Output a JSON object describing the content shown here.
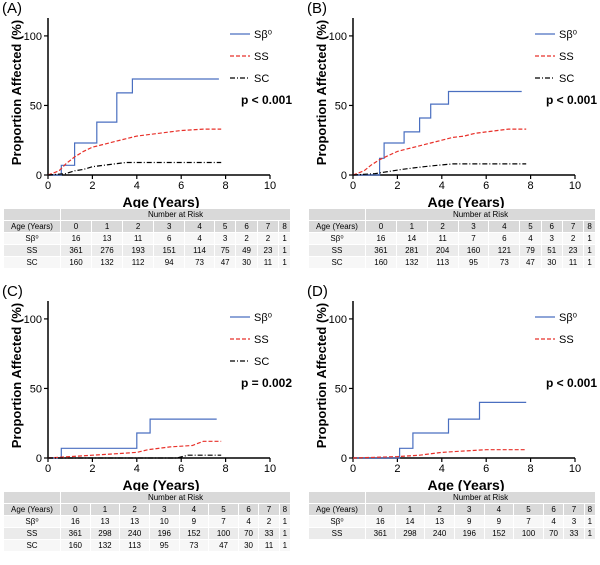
{
  "chart_data": [
    {
      "type": "line",
      "panel_label": "(A)",
      "xlabel": "Age (Years)",
      "ylabel": "Proportion Affected (%)",
      "xlim": [
        0,
        10
      ],
      "ylim": [
        0,
        110
      ],
      "xticks": [
        0,
        2,
        4,
        6,
        8,
        10
      ],
      "yticks": [
        0,
        50,
        100
      ],
      "p_value": "p < 0.001",
      "legend_placement": "top-right",
      "series": [
        {
          "name": "Sβ⁰",
          "color": "#4a6fc0",
          "dash": "solid",
          "x": [
            0,
            0.6,
            0.6,
            1.2,
            1.2,
            2.2,
            2.2,
            3.1,
            3.1,
            3.8,
            3.8,
            7.7
          ],
          "y": [
            0,
            0,
            7,
            7,
            23,
            23,
            38,
            38,
            59,
            59,
            69,
            69
          ]
        },
        {
          "name": "SS",
          "color": "#e8312a",
          "dash": "dash",
          "x": [
            0,
            0.5,
            0.8,
            1.2,
            1.6,
            2.0,
            2.5,
            3.0,
            3.5,
            4.0,
            4.5,
            5.0,
            5.5,
            6.0,
            7.0,
            7.8
          ],
          "y": [
            0,
            3,
            8,
            13,
            17,
            20,
            22,
            24,
            26,
            28,
            29,
            30,
            31,
            32,
            33,
            33
          ]
        },
        {
          "name": "SC",
          "color": "#000000",
          "dash": "dashdot",
          "x": [
            0,
            0.8,
            1.2,
            1.6,
            2.0,
            2.5,
            3.0,
            3.5,
            4.0,
            7.8
          ],
          "y": [
            0,
            1,
            3,
            4,
            6,
            7,
            8,
            9,
            9,
            9
          ]
        }
      ]
    },
    {
      "type": "line",
      "panel_label": "(B)",
      "xlabel": "Age (Years)",
      "ylabel": "Proportion Affected (%)",
      "xlim": [
        0,
        10
      ],
      "ylim": [
        0,
        110
      ],
      "xticks": [
        0,
        2,
        4,
        6,
        8,
        10
      ],
      "yticks": [
        0,
        50,
        100
      ],
      "p_value": "p < 0.001",
      "legend_placement": "top-right",
      "series": [
        {
          "name": "Sβ⁰",
          "color": "#4a6fc0",
          "dash": "solid",
          "x": [
            0,
            1.2,
            1.2,
            1.4,
            1.4,
            2.3,
            2.3,
            3.0,
            3.0,
            3.5,
            3.5,
            4.3,
            4.3,
            7.6
          ],
          "y": [
            0,
            0,
            12,
            12,
            23,
            23,
            31,
            31,
            41,
            41,
            51,
            51,
            60,
            60
          ]
        },
        {
          "name": "SS",
          "color": "#e8312a",
          "dash": "dash",
          "x": [
            0,
            0.5,
            0.8,
            1.2,
            1.6,
            2.0,
            2.5,
            3.0,
            3.5,
            4.0,
            4.5,
            5.0,
            5.5,
            6.0,
            7.0,
            7.8
          ],
          "y": [
            0,
            3,
            7,
            11,
            14,
            17,
            19,
            21,
            23,
            25,
            27,
            28,
            30,
            31,
            33,
            33
          ]
        },
        {
          "name": "SC",
          "color": "#000000",
          "dash": "dashdot",
          "x": [
            0,
            1.0,
            1.4,
            1.8,
            2.2,
            2.7,
            3.2,
            3.8,
            4.5,
            7.8
          ],
          "y": [
            0,
            1,
            2,
            3,
            4,
            5,
            6,
            7,
            8,
            8
          ]
        }
      ]
    },
    {
      "type": "line",
      "panel_label": "(C)",
      "xlabel": "Age (Years)",
      "ylabel": "Proportion Affected (%)",
      "xlim": [
        0,
        10
      ],
      "ylim": [
        0,
        110
      ],
      "xticks": [
        0,
        2,
        4,
        6,
        8,
        10
      ],
      "yticks": [
        0,
        50,
        100
      ],
      "p_value": "p = 0.002",
      "legend_placement": "top-right",
      "series": [
        {
          "name": "Sβ⁰",
          "color": "#4a6fc0",
          "dash": "solid",
          "x": [
            0,
            0.6,
            0.6,
            4.0,
            4.0,
            4.6,
            4.6,
            7.6
          ],
          "y": [
            0,
            0,
            7,
            7,
            18,
            18,
            28,
            28
          ]
        },
        {
          "name": "SS",
          "color": "#e8312a",
          "dash": "dash",
          "x": [
            0,
            1.0,
            2.0,
            3.0,
            4.0,
            4.5,
            5.5,
            6.5,
            7.0,
            7.8
          ],
          "y": [
            0,
            1,
            2,
            3,
            4,
            6,
            8,
            9,
            12,
            12
          ]
        },
        {
          "name": "SC",
          "color": "#000000",
          "dash": "dashdot",
          "x": [
            0,
            5.8,
            6.3,
            7.8
          ],
          "y": [
            0,
            0,
            2,
            2
          ]
        }
      ]
    },
    {
      "type": "line",
      "panel_label": "(D)",
      "xlabel": "Age (Years)",
      "ylabel": "Proportion Affected (%)",
      "xlim": [
        0,
        10
      ],
      "ylim": [
        0,
        110
      ],
      "xticks": [
        0,
        2,
        4,
        6,
        8,
        10
      ],
      "yticks": [
        0,
        50,
        100
      ],
      "p_value": "p < 0.001",
      "legend_placement": "top-right",
      "series": [
        {
          "name": "Sβ⁰",
          "color": "#4a6fc0",
          "dash": "solid",
          "x": [
            0,
            2.1,
            2.1,
            2.7,
            2.7,
            4.3,
            4.3,
            5.7,
            5.7,
            7.8
          ],
          "y": [
            0,
            0,
            7,
            7,
            18,
            18,
            28,
            28,
            40,
            40
          ]
        },
        {
          "name": "SS",
          "color": "#e8312a",
          "dash": "dash",
          "x": [
            0,
            2.0,
            3.0,
            4.0,
            5.0,
            6.0,
            7.0,
            7.8
          ],
          "y": [
            0,
            1,
            2,
            4,
            5,
            6,
            6,
            6
          ]
        }
      ]
    }
  ],
  "tables": [
    {
      "title": "Number at Risk",
      "col_header": "Age (Years)",
      "ages": [
        "0",
        "1",
        "2",
        "3",
        "4",
        "5",
        "6",
        "7",
        "8"
      ],
      "rows": [
        {
          "label": "Sβ⁰",
          "values": [
            "16",
            "13",
            "11",
            "6",
            "4",
            "3",
            "2",
            "2",
            "1"
          ]
        },
        {
          "label": "SS",
          "values": [
            "361",
            "276",
            "193",
            "151",
            "114",
            "75",
            "49",
            "23",
            "1"
          ]
        },
        {
          "label": "SC",
          "values": [
            "160",
            "132",
            "112",
            "94",
            "73",
            "47",
            "30",
            "11",
            "1"
          ]
        }
      ]
    },
    {
      "title": "Number at Risk",
      "col_header": "Age (Years)",
      "ages": [
        "0",
        "1",
        "2",
        "3",
        "4",
        "5",
        "6",
        "7",
        "8"
      ],
      "rows": [
        {
          "label": "Sβ⁰",
          "values": [
            "16",
            "14",
            "11",
            "7",
            "6",
            "4",
            "3",
            "2",
            "1"
          ]
        },
        {
          "label": "SS",
          "values": [
            "361",
            "281",
            "204",
            "160",
            "121",
            "79",
            "51",
            "23",
            "1"
          ]
        },
        {
          "label": "SC",
          "values": [
            "160",
            "132",
            "113",
            "95",
            "73",
            "47",
            "30",
            "11",
            "1"
          ]
        }
      ]
    },
    {
      "title": "Number at Risk",
      "col_header": "Age (Years)",
      "ages": [
        "0",
        "1",
        "2",
        "3",
        "4",
        "5",
        "6",
        "7",
        "8"
      ],
      "rows": [
        {
          "label": "Sβ⁰",
          "values": [
            "16",
            "13",
            "13",
            "10",
            "9",
            "7",
            "4",
            "2",
            "1"
          ]
        },
        {
          "label": "SS",
          "values": [
            "361",
            "298",
            "240",
            "196",
            "152",
            "100",
            "70",
            "33",
            "1"
          ]
        },
        {
          "label": "SC",
          "values": [
            "160",
            "132",
            "113",
            "95",
            "73",
            "47",
            "30",
            "11",
            "1"
          ]
        }
      ]
    },
    {
      "title": "Number at Risk",
      "col_header": "Age (Years)",
      "ages": [
        "0",
        "1",
        "2",
        "3",
        "4",
        "5",
        "6",
        "7",
        "8"
      ],
      "rows": [
        {
          "label": "Sβ⁰",
          "values": [
            "16",
            "14",
            "13",
            "9",
            "9",
            "7",
            "4",
            "3",
            "1"
          ]
        },
        {
          "label": "SS",
          "values": [
            "361",
            "298",
            "240",
            "196",
            "152",
            "100",
            "70",
            "33",
            "1"
          ]
        }
      ]
    }
  ]
}
